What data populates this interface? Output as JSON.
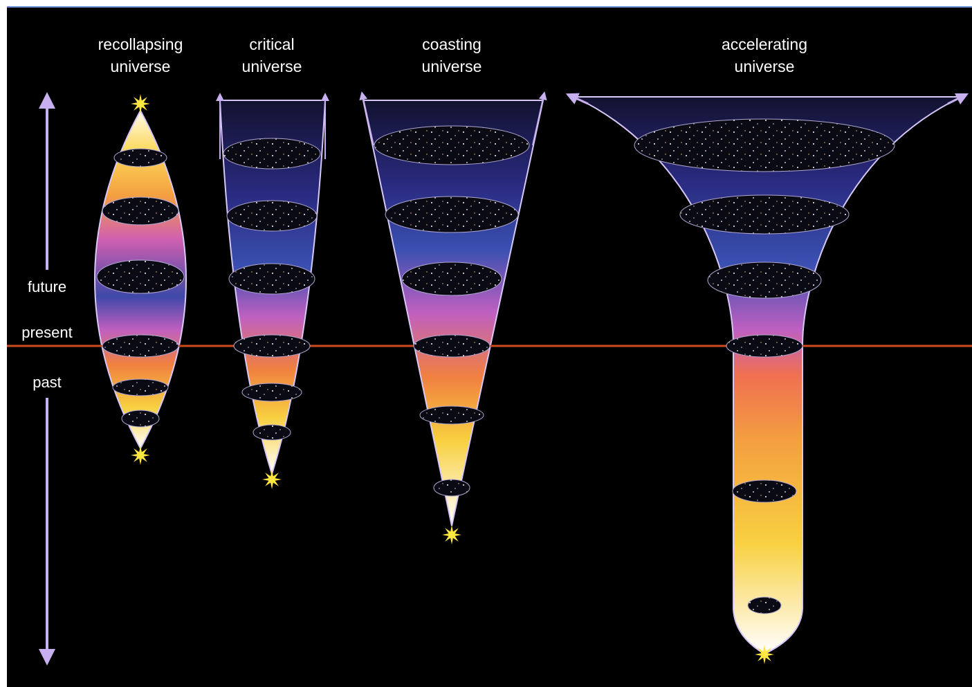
{
  "universes": [
    {
      "lines": [
        "recollapsing",
        "universe"
      ]
    },
    {
      "lines": [
        "critical",
        "universe"
      ]
    },
    {
      "lines": [
        "coasting",
        "universe"
      ]
    },
    {
      "lines": [
        "accelerating",
        "universe"
      ]
    }
  ],
  "time_axis": {
    "future": "future",
    "present": "present",
    "past": "past"
  }
}
